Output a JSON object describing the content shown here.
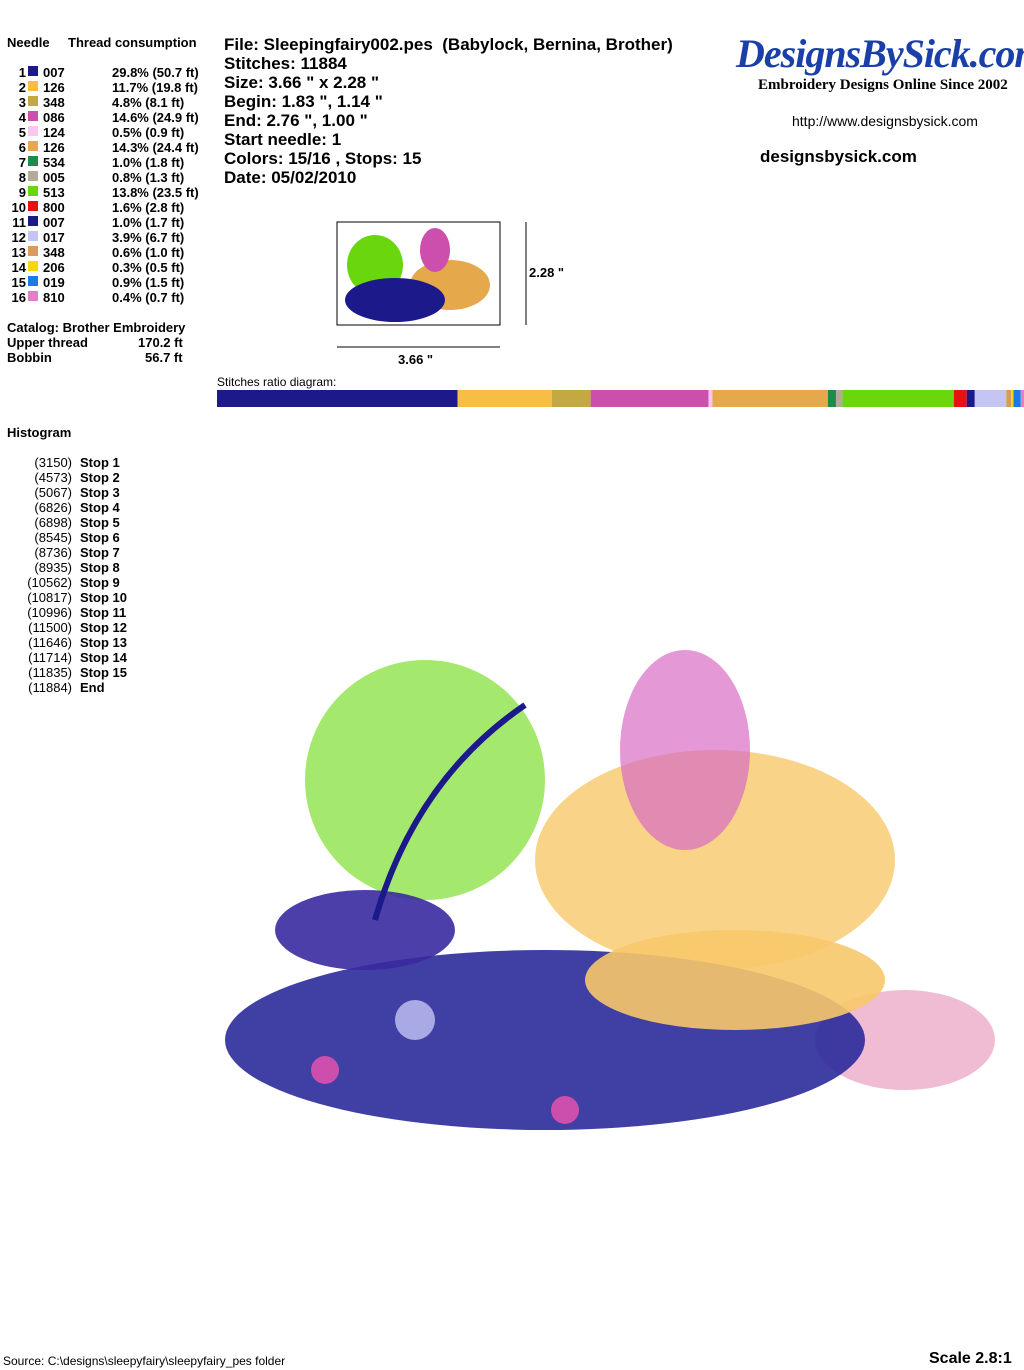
{
  "needles": {
    "header": {
      "needle": "Needle",
      "consumption": "Thread consumption"
    },
    "rows": [
      {
        "needle": 1,
        "color": "#1c1a8a",
        "code": "007",
        "percent": 29.8,
        "consumption": "29.8% (50.7 ft)"
      },
      {
        "needle": 2,
        "color": "#f7bd45",
        "code": "126",
        "percent": 11.7,
        "consumption": "11.7% (19.8 ft)"
      },
      {
        "needle": 3,
        "color": "#c4a841",
        "code": "348",
        "percent": 4.8,
        "consumption": "4.8% (8.1 ft)"
      },
      {
        "needle": 4,
        "color": "#cc4fae",
        "code": "086",
        "percent": 14.6,
        "consumption": "14.6% (24.9 ft)"
      },
      {
        "needle": 5,
        "color": "#f8c6ee",
        "code": "124",
        "percent": 0.5,
        "consumption": "0.5% (0.9 ft)"
      },
      {
        "needle": 6,
        "color": "#e5a84b",
        "code": "126",
        "percent": 14.3,
        "consumption": "14.3% (24.4 ft)"
      },
      {
        "needle": 7,
        "color": "#1a8c4c",
        "code": "534",
        "percent": 1.0,
        "consumption": "1.0% (1.8 ft)"
      },
      {
        "needle": 8,
        "color": "#b3ab98",
        "code": "005",
        "percent": 0.8,
        "consumption": "0.8% (1.3 ft)"
      },
      {
        "needle": 9,
        "color": "#6ad60e",
        "code": "513",
        "percent": 13.8,
        "consumption": "13.8% (23.5 ft)"
      },
      {
        "needle": 10,
        "color": "#e61212",
        "code": "800",
        "percent": 1.6,
        "consumption": "1.6% (2.8 ft)"
      },
      {
        "needle": 11,
        "color": "#1c1a8a",
        "code": "007",
        "percent": 1.0,
        "consumption": "1.0% (1.7 ft)"
      },
      {
        "needle": 12,
        "color": "#c4c4f5",
        "code": "017",
        "percent": 3.9,
        "consumption": "3.9% (6.7 ft)"
      },
      {
        "needle": 13,
        "color": "#d99b5c",
        "code": "348",
        "percent": 0.6,
        "consumption": "0.6% (1.0 ft)"
      },
      {
        "needle": 14,
        "color": "#f5d80c",
        "code": "206",
        "percent": 0.3,
        "consumption": "0.3% (0.5 ft)"
      },
      {
        "needle": 15,
        "color": "#1c7ae6",
        "code": "019",
        "percent": 0.9,
        "consumption": "0.9% (1.5 ft)"
      },
      {
        "needle": 16,
        "color": "#e080c8",
        "code": "810",
        "percent": 0.4,
        "consumption": "0.4% (0.7 ft)"
      }
    ]
  },
  "catalog": {
    "title": "Catalog: Brother Embroidery",
    "rows": [
      {
        "label": "Upper thread",
        "value": "170.2 ft"
      },
      {
        "label": "Bobbin",
        "value": "56.7 ft"
      }
    ]
  },
  "info": [
    "File: Sleepingfairy002.pes  (Babylock, Bernina, Brother)",
    "Stitches: 11884",
    "Size: 3.66 \" x 2.28 \"",
    "Begin: 1.83 \", 1.14 \"",
    "End: 2.76 \", 1.00 \"",
    "Start needle: 1",
    "Colors: 15/16 , Stops: 15",
    "Date: 05/02/2010"
  ],
  "logo": {
    "name": "DesignsBySick.com",
    "tagline": "Embroidery Designs Online Since 2002",
    "url": "http://www.designsbysick.com",
    "site": "designsbysick.com"
  },
  "thumbnail": {
    "height": "2.28 \"",
    "width": "3.66 \""
  },
  "ratio_title": "Stitches ratio diagram:",
  "histogram": {
    "title": "Histogram",
    "rows": [
      {
        "stitches": "(3150)",
        "label": "Stop 1"
      },
      {
        "stitches": "(4573)",
        "label": "Stop 2"
      },
      {
        "stitches": "(5067)",
        "label": "Stop 3"
      },
      {
        "stitches": "(6826)",
        "label": "Stop 4"
      },
      {
        "stitches": "(6898)",
        "label": "Stop 5"
      },
      {
        "stitches": "(8545)",
        "label": "Stop 6"
      },
      {
        "stitches": "(8736)",
        "label": "Stop 7"
      },
      {
        "stitches": "(8935)",
        "label": "Stop 8"
      },
      {
        "stitches": "(10562)",
        "label": "Stop 9"
      },
      {
        "stitches": "(10817)",
        "label": "Stop 10"
      },
      {
        "stitches": "(10996)",
        "label": "Stop 11"
      },
      {
        "stitches": "(11500)",
        "label": "Stop 12"
      },
      {
        "stitches": "(11646)",
        "label": "Stop 13"
      },
      {
        "stitches": "(11714)",
        "label": "Stop 14"
      },
      {
        "stitches": "(11835)",
        "label": "Stop 15"
      },
      {
        "stitches": "(11884)",
        "label": "End"
      }
    ]
  },
  "footer": {
    "source": "Source: C:\\designs\\sleepyfairy\\sleepyfairy_pes folder",
    "scale": "Scale 2.8:1"
  }
}
